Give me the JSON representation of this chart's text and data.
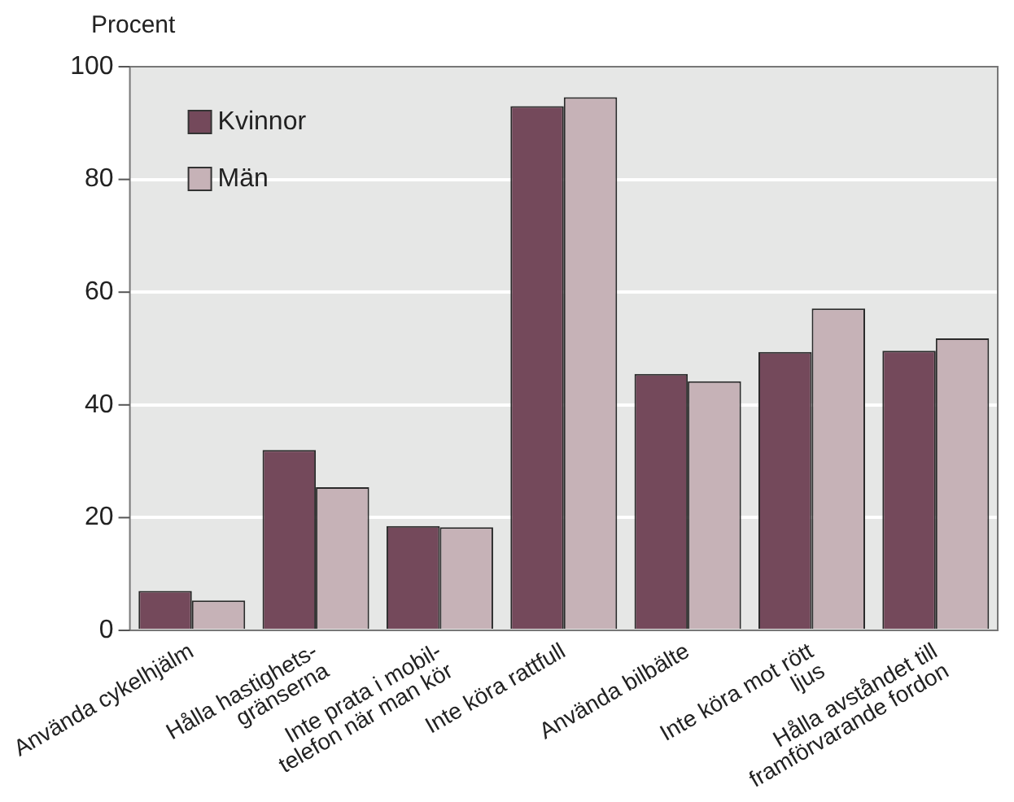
{
  "chart_data": {
    "type": "bar",
    "ylabel": "Procent",
    "categories": [
      "Använda cykelhjälm",
      "Hålla hastighets-\ngränserna",
      "Inte prata i mobil-\ntelefon när man kör",
      "Inte köra rattfull",
      "Använda bilbälte",
      "Inte köra mot rött\nljus",
      "Hålla avståndet till\nframförvarande fordon"
    ],
    "series": [
      {
        "name": "Kvinnor",
        "color": "#74495b",
        "values": [
          7.0,
          32.0,
          18.5,
          93.0,
          45.5,
          49.4,
          49.6
        ]
      },
      {
        "name": "Män",
        "color": "#c6b2b7",
        "values": [
          5.3,
          25.4,
          18.3,
          94.6,
          44.2,
          57.1,
          51.8
        ]
      }
    ],
    "ylim": [
      0,
      100
    ],
    "yticks": [
      0,
      20,
      40,
      60,
      80,
      100
    ],
    "grid": "y",
    "legend": "top left"
  }
}
